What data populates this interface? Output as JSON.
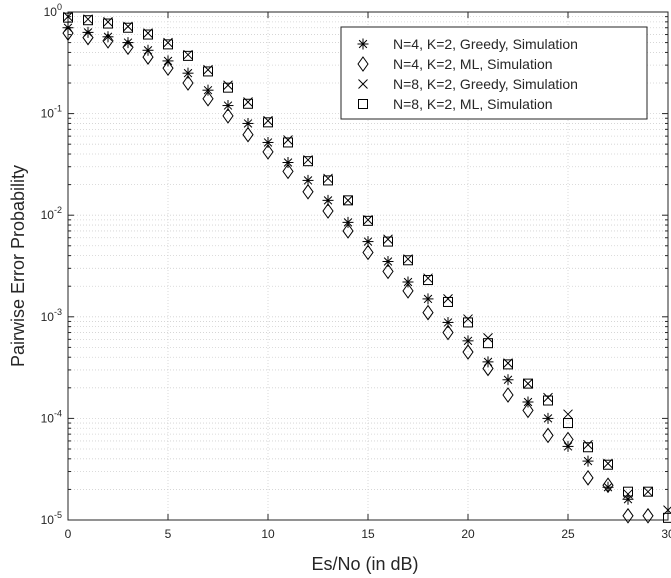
{
  "chart_data": {
    "type": "scatter",
    "title": "",
    "xlabel": "Es/No (in dB)",
    "ylabel": "Pairwise Error Probability",
    "xlim": [
      0,
      30
    ],
    "ylim": [
      1e-05,
      1
    ],
    "yscale": "log",
    "grid": true,
    "minor_grid": true,
    "legend_position": "top-right",
    "x_ticks": [
      0,
      5,
      10,
      15,
      20,
      25,
      30
    ],
    "x_tick_labels": [
      "0",
      "5",
      "10",
      "15",
      "20",
      "25",
      "30"
    ],
    "y_ticks": [
      1e-05,
      0.0001,
      0.001,
      0.01,
      0.1,
      1
    ],
    "y_tick_labels": [
      {
        "base": "10",
        "exp": "-5"
      },
      {
        "base": "10",
        "exp": "-4"
      },
      {
        "base": "10",
        "exp": "-3"
      },
      {
        "base": "10",
        "exp": "-2"
      },
      {
        "base": "10",
        "exp": "-1"
      },
      {
        "base": "10",
        "exp": "0"
      }
    ],
    "series": [
      {
        "name": "N=4, K=2, Greedy, Simulation",
        "marker": "asterisk",
        "color": "#000000",
        "x": [
          0,
          1,
          2,
          3,
          4,
          5,
          6,
          7,
          8,
          9,
          10,
          11,
          12,
          13,
          14,
          15,
          16,
          17,
          18,
          19,
          20,
          21,
          22,
          23,
          24,
          25,
          26,
          27,
          28
        ],
        "values": [
          0.7,
          0.63,
          0.57,
          0.5,
          0.42,
          0.33,
          0.25,
          0.17,
          0.12,
          0.08,
          0.052,
          0.033,
          0.022,
          0.014,
          0.0085,
          0.0055,
          0.0035,
          0.0022,
          0.0015,
          0.00088,
          0.00058,
          0.00036,
          0.00024,
          0.000145,
          0.0001,
          5.3e-05,
          3.8e-05,
          2.1e-05,
          1.6e-05
        ]
      },
      {
        "name": "N=4, K=2, ML, Simulation",
        "marker": "diamond",
        "color": "#000000",
        "x": [
          0,
          1,
          2,
          3,
          4,
          5,
          6,
          7,
          8,
          9,
          10,
          11,
          12,
          13,
          14,
          15,
          16,
          17,
          18,
          19,
          20,
          21,
          22,
          23,
          24,
          25,
          26,
          27,
          28,
          29
        ],
        "values": [
          0.62,
          0.56,
          0.52,
          0.45,
          0.36,
          0.28,
          0.2,
          0.14,
          0.095,
          0.062,
          0.042,
          0.027,
          0.017,
          0.011,
          0.007,
          0.0043,
          0.0028,
          0.0018,
          0.0011,
          0.0007,
          0.00045,
          0.00031,
          0.00017,
          0.00012,
          6.8e-05,
          6.2e-05,
          2.6e-05,
          2.2e-05,
          1.1e-05,
          1.1e-05
        ]
      },
      {
        "name": "N=8, K=2, Greedy, Simulation",
        "marker": "x",
        "color": "#000000",
        "x": [
          0,
          1,
          2,
          3,
          4,
          5,
          6,
          7,
          8,
          9,
          10,
          11,
          12,
          13,
          14,
          15,
          16,
          17,
          18,
          19,
          20,
          21,
          22,
          23,
          24,
          25,
          26,
          27,
          28,
          29,
          30
        ],
        "values": [
          0.9,
          0.85,
          0.8,
          0.72,
          0.62,
          0.5,
          0.38,
          0.27,
          0.19,
          0.13,
          0.085,
          0.055,
          0.035,
          0.023,
          0.014,
          0.009,
          0.0058,
          0.0037,
          0.0024,
          0.0015,
          0.00095,
          0.00062,
          0.00035,
          0.00022,
          0.00016,
          0.00011,
          5.5e-05,
          3.6e-05,
          1.8e-05,
          1.9e-05,
          1.25e-05
        ]
      },
      {
        "name": "N=8, K=2, ML, Simulation",
        "marker": "square",
        "color": "#000000",
        "x": [
          0,
          1,
          2,
          3,
          4,
          5,
          6,
          7,
          8,
          9,
          10,
          11,
          12,
          13,
          14,
          15,
          16,
          17,
          18,
          19,
          20,
          21,
          22,
          23,
          24,
          25,
          26,
          27,
          28,
          29,
          30
        ],
        "values": [
          0.88,
          0.83,
          0.77,
          0.7,
          0.6,
          0.48,
          0.37,
          0.26,
          0.18,
          0.125,
          0.082,
          0.052,
          0.034,
          0.022,
          0.014,
          0.0088,
          0.0055,
          0.0036,
          0.0023,
          0.0014,
          0.00088,
          0.00055,
          0.00034,
          0.00022,
          0.00015,
          9e-05,
          5.2e-05,
          3.5e-05,
          1.9e-05,
          1.9e-05,
          1.05e-05
        ]
      }
    ]
  }
}
